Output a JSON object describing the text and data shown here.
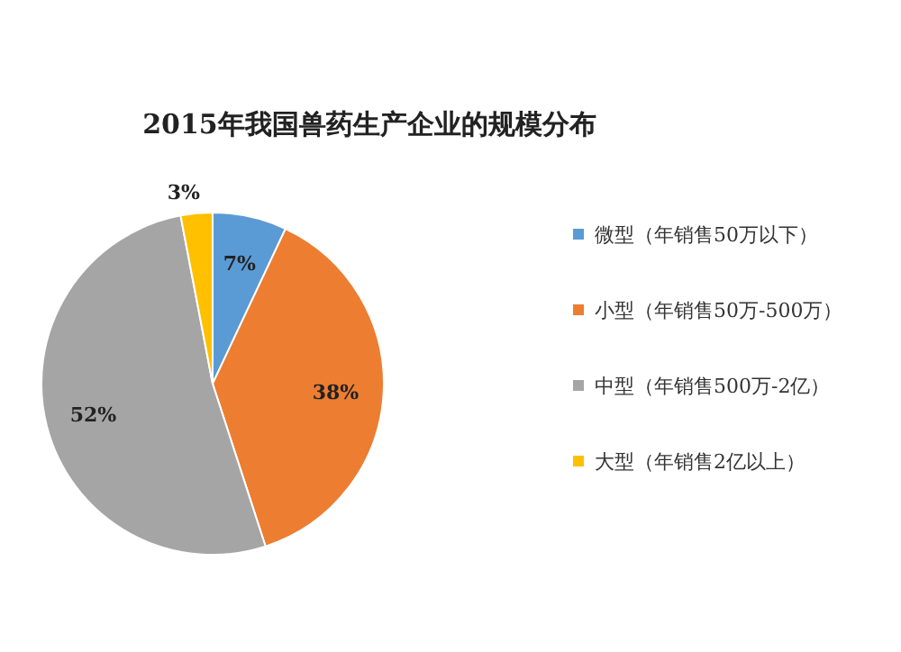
{
  "chart_data": {
    "type": "pie",
    "title": "2015年我国兽药生产企业的规模分布",
    "categories": [
      "微型（年销售50万以下）",
      "小型（年销售50万-500万）",
      "中型（年销售500万-2亿）",
      "大型（年销售2亿以上）"
    ],
    "values": [
      7,
      38,
      52,
      3
    ],
    "colors": [
      "#5b9bd5",
      "#ed7d31",
      "#a5a5a5",
      "#ffc000"
    ],
    "value_labels": [
      "7%",
      "38%",
      "52%",
      "3%"
    ],
    "legend": "right"
  }
}
